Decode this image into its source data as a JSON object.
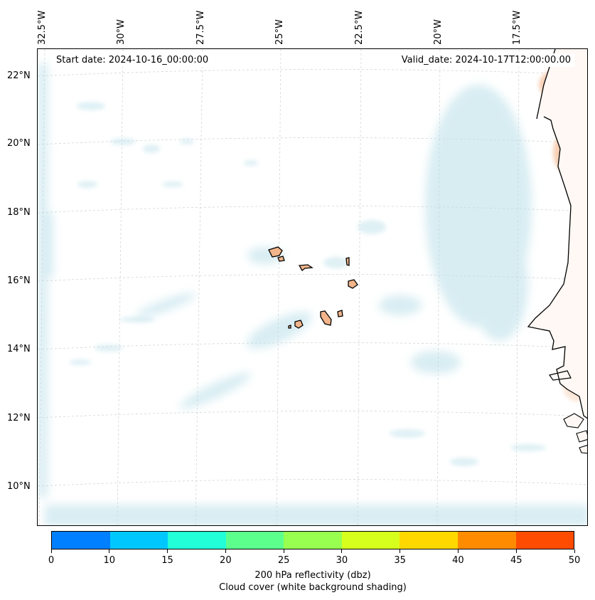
{
  "map": {
    "start_date_label": "Start date: 2024-10-16_00:00:00",
    "valid_date_label": "Valid_date: 2024-10-17T12:00:00.00",
    "longitude_labels": [
      "32.5°W",
      "30°W",
      "27.5°W",
      "25°W",
      "22.5°W",
      "20°W",
      "17.5°W"
    ],
    "latitude_labels": [
      "22°N",
      "20°N",
      "18°N",
      "16°N",
      "14°N",
      "12°N",
      "10°N"
    ],
    "region": "Cabo Verde and West African coast"
  },
  "colorbar": {
    "tick_labels": [
      "0",
      "10",
      "15",
      "20",
      "25",
      "30",
      "35",
      "40",
      "45",
      "50"
    ],
    "colors": [
      "#0080ff",
      "#00c8ff",
      "#22ffd8",
      "#5dff8c",
      "#98ff50",
      "#d6ff1e",
      "#ffd800",
      "#ff8c00",
      "#ff4c00"
    ],
    "title_line1": "200 hPa reflectivity (dbz)",
    "title_line2": "Cloud cover (white background shading)"
  },
  "colors": {
    "cloud": "#b9dfe9",
    "land_fill": "#f2b48a",
    "grid": "#cccccc"
  }
}
